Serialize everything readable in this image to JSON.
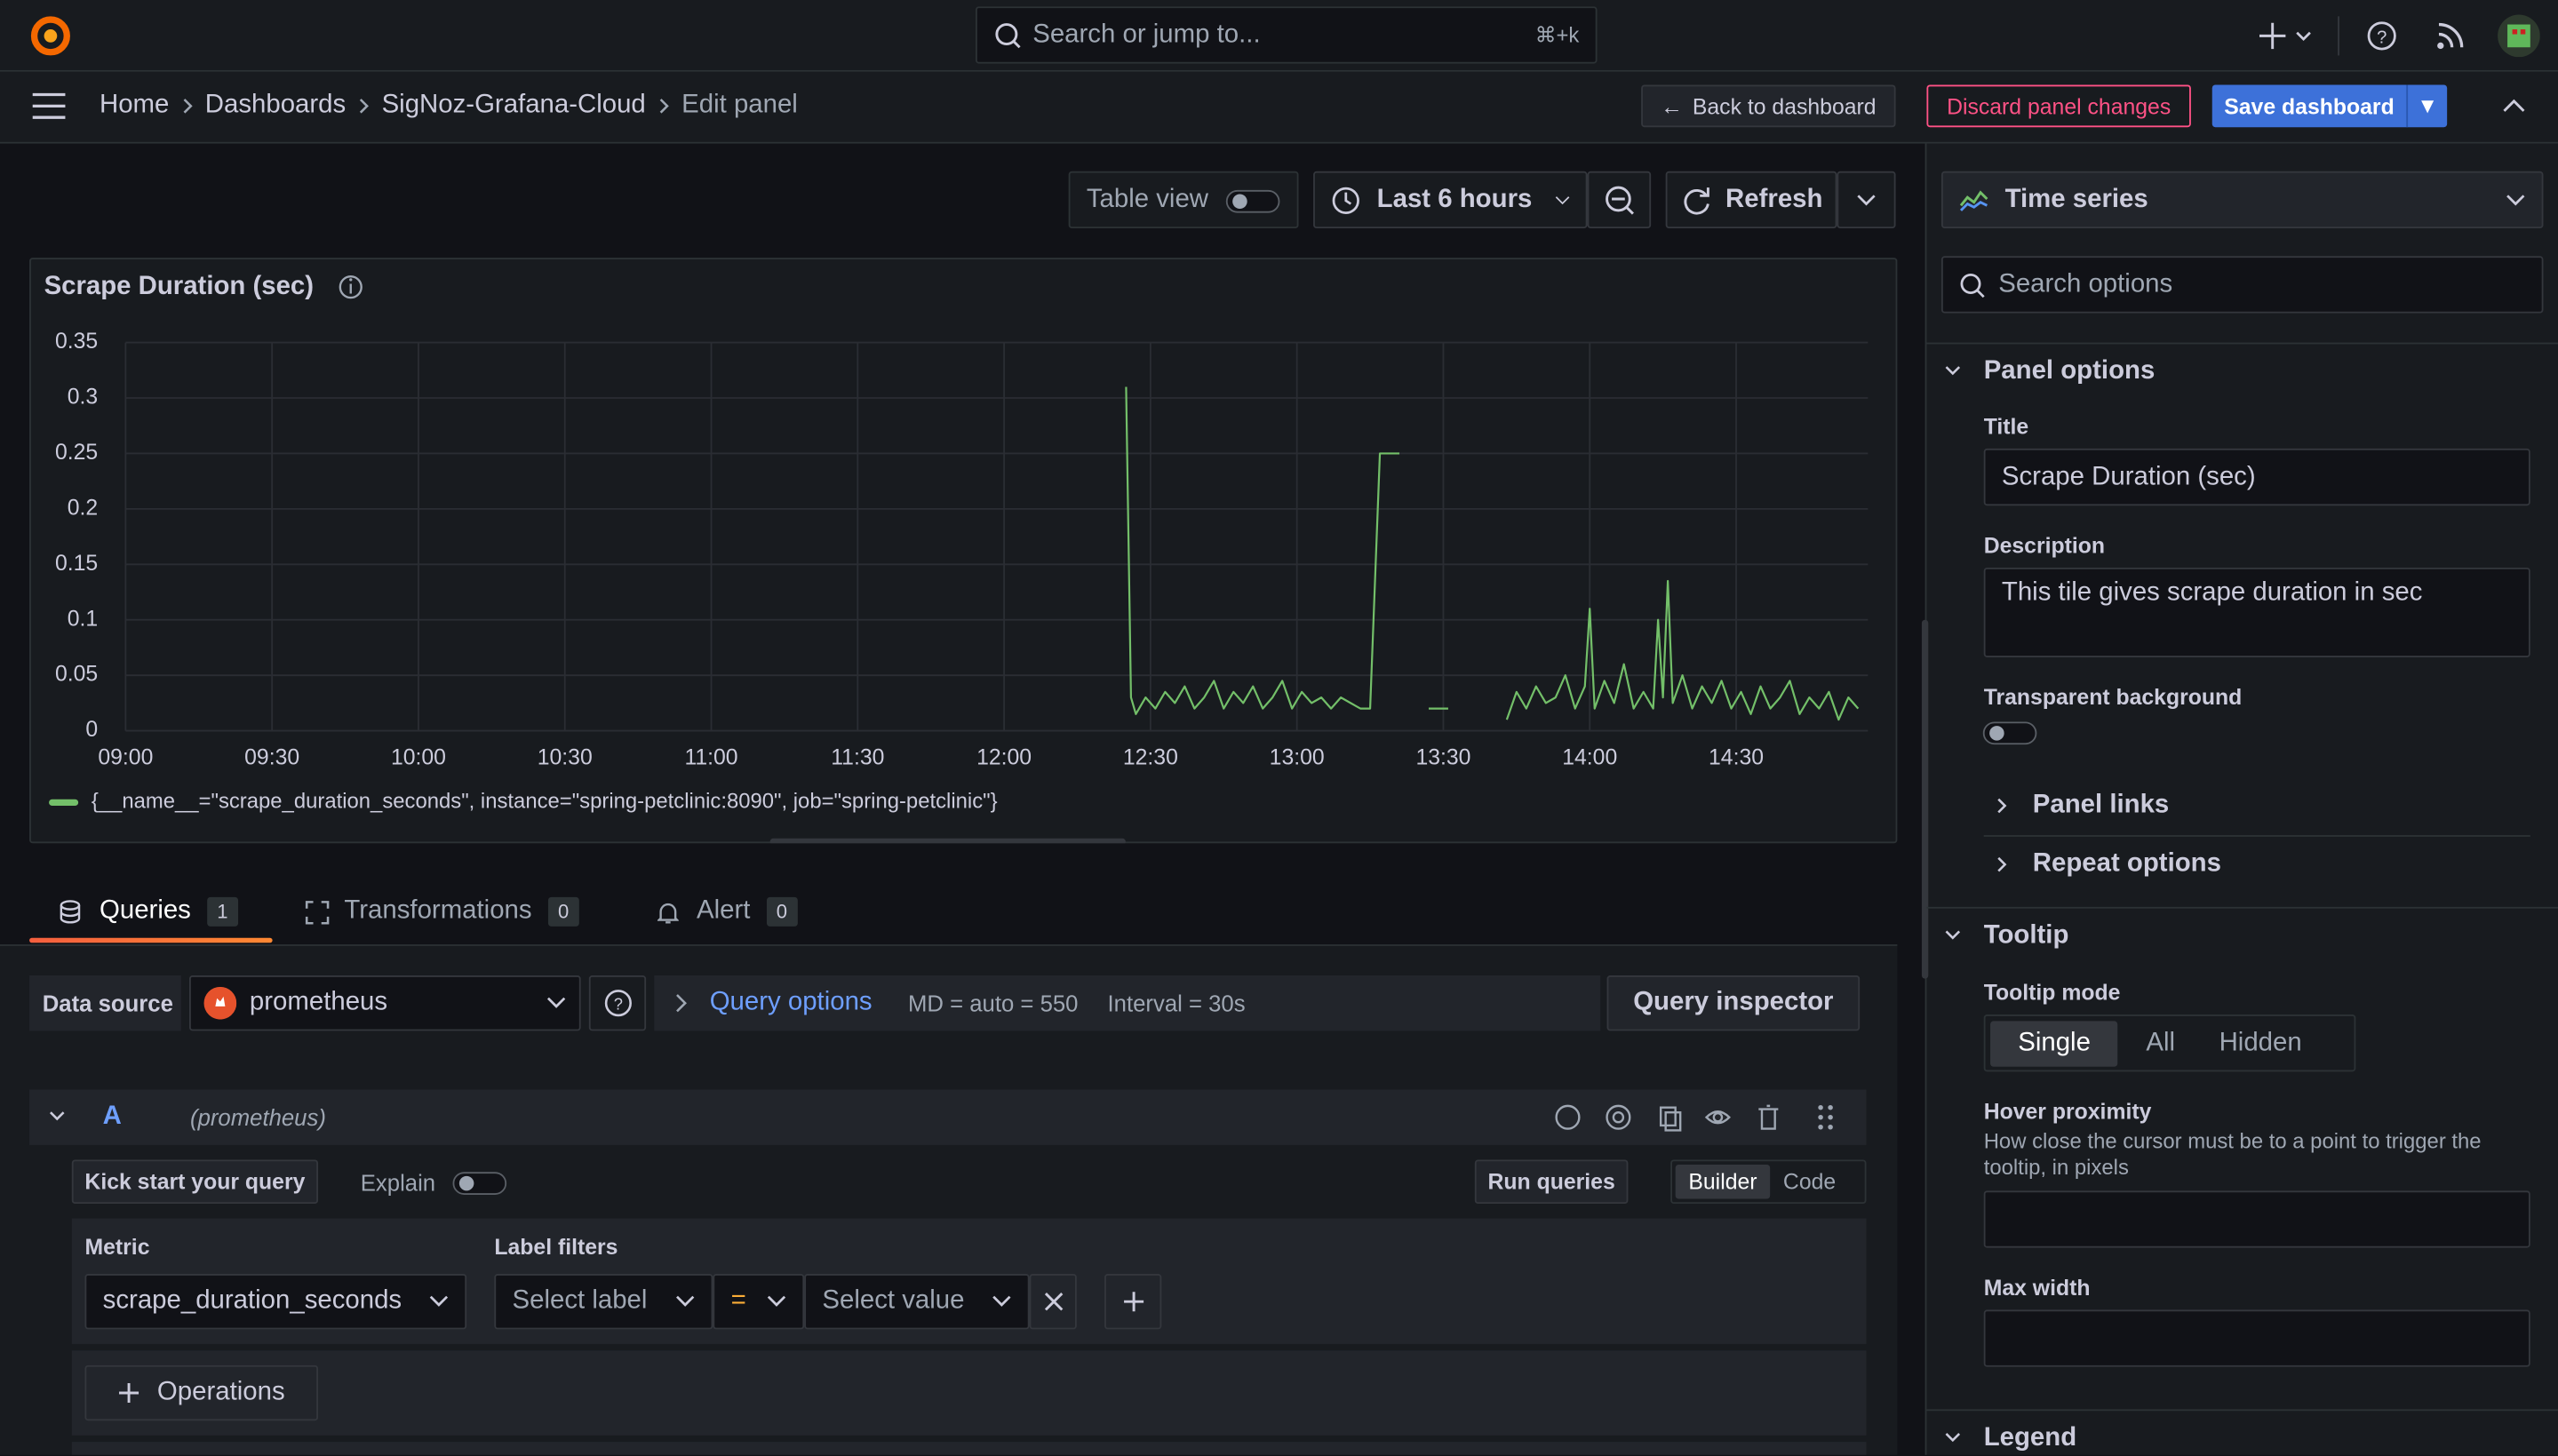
{
  "topbar": {
    "search_placeholder": "Search or jump to...",
    "shortcut": "⌘+k"
  },
  "breadcrumbs": [
    "Home",
    "Dashboards",
    "SigNoz-Grafana-Cloud",
    "Edit panel"
  ],
  "actions": {
    "back": "Back to dashboard",
    "discard": "Discard panel changes",
    "save": "Save dashboard"
  },
  "toolbar": {
    "table_view": "Table view",
    "time_range": "Last 6 hours",
    "refresh": "Refresh"
  },
  "chart_data": {
    "type": "line",
    "title": "Scrape Duration (sec)",
    "x": [
      "12:25",
      "12:26",
      "12:27",
      "12:29",
      "12:31",
      "12:33",
      "12:35",
      "12:37",
      "12:39",
      "12:41",
      "12:43",
      "12:45",
      "12:47",
      "12:49",
      "12:51",
      "12:53",
      "12:55",
      "12:57",
      "12:59",
      "13:01",
      "13:03",
      "13:05",
      "13:07",
      "13:09",
      "13:11",
      "13:13",
      "13:15",
      "13:17",
      "13:21",
      "13:24",
      "13:27",
      "13:31",
      "13:37",
      "13:43",
      "13:45",
      "13:47",
      "13:49",
      "13:51",
      "13:53",
      "13:55",
      "13:57",
      "13:59",
      "14:00",
      "14:01",
      "14:03",
      "14:05",
      "14:07",
      "14:09",
      "14:11",
      "14:13",
      "14:14",
      "14:15",
      "14:16",
      "14:17",
      "14:19",
      "14:21",
      "14:23",
      "14:25",
      "14:27",
      "14:29",
      "14:31",
      "14:33",
      "14:35",
      "14:37",
      "14:39",
      "14:41",
      "14:43",
      "14:45",
      "14:47",
      "14:49",
      "14:51",
      "14:53",
      "14:55"
    ],
    "series": [
      {
        "name": "{__name__=\"scrape_duration_seconds\", instance=\"spring-petclinic:8090\", job=\"spring-petclinic\"}",
        "color": "#73bf69",
        "values": [
          0.31,
          0.03,
          0.015,
          0.03,
          0.02,
          0.035,
          0.025,
          0.04,
          0.02,
          0.03,
          0.045,
          0.02,
          0.035,
          0.025,
          0.04,
          0.02,
          0.03,
          0.045,
          0.02,
          0.035,
          0.025,
          0.03,
          0.02,
          0.03,
          0.025,
          0.02,
          0.02,
          0.25,
          0.25,
          null,
          0.02,
          0.02,
          null,
          0.01,
          0.035,
          0.02,
          0.04,
          0.025,
          0.03,
          0.05,
          0.02,
          0.04,
          0.11,
          0.02,
          0.045,
          0.025,
          0.06,
          0.02,
          0.035,
          0.02,
          0.1,
          0.03,
          0.135,
          0.025,
          0.05,
          0.02,
          0.04,
          0.025,
          0.045,
          0.02,
          0.035,
          0.015,
          0.04,
          0.02,
          0.03,
          0.045,
          0.015,
          0.03,
          0.02,
          0.035,
          0.01,
          0.03,
          0.02
        ]
      }
    ],
    "xlim": [
      "09:00",
      "14:57"
    ],
    "xticks": [
      "09:00",
      "09:30",
      "10:00",
      "10:30",
      "11:00",
      "11:30",
      "12:00",
      "12:30",
      "13:00",
      "13:30",
      "14:00",
      "14:30"
    ],
    "ylim": [
      0,
      0.35
    ],
    "yticks": [
      0,
      0.05,
      0.1,
      0.15,
      0.2,
      0.25,
      0.3,
      0.35
    ],
    "grid": true
  },
  "tabs": [
    {
      "label": "Queries",
      "count": 1
    },
    {
      "label": "Transformations",
      "count": 0
    },
    {
      "label": "Alert",
      "count": 0
    }
  ],
  "datasource": {
    "label": "Data source",
    "name": "prometheus",
    "query_options": "Query options",
    "md": "MD = auto = 550",
    "interval": "Interval = 30s",
    "inspector": "Query inspector"
  },
  "query": {
    "ref": "A",
    "source": "(prometheus)",
    "kick_start": "Kick start your query",
    "explain": "Explain",
    "run": "Run queries",
    "builder": "Builder",
    "code": "Code",
    "metric_label": "Metric",
    "metric": "scrape_duration_seconds",
    "label_filters": "Label filters",
    "select_label": "Select label",
    "operator": "=",
    "select_value": "Select value",
    "operations": "Operations"
  },
  "options": {
    "visualization": "Time series",
    "search": "Search options",
    "panel_options": "Panel options",
    "title_label": "Title",
    "title_value": "Scrape Duration (sec)",
    "description_label": "Description",
    "description_value": "This tile gives scrape duration in sec",
    "transparent": "Transparent background",
    "panel_links": "Panel links",
    "repeat_options": "Repeat options",
    "tooltip": "Tooltip",
    "tooltip_mode": "Tooltip mode",
    "modes": [
      "Single",
      "All",
      "Hidden"
    ],
    "hover_proximity": "Hover proximity",
    "hover_desc": "How close the cursor must be to a point to trigger the tooltip, in pixels",
    "max_width": "Max width",
    "legend": "Legend"
  }
}
